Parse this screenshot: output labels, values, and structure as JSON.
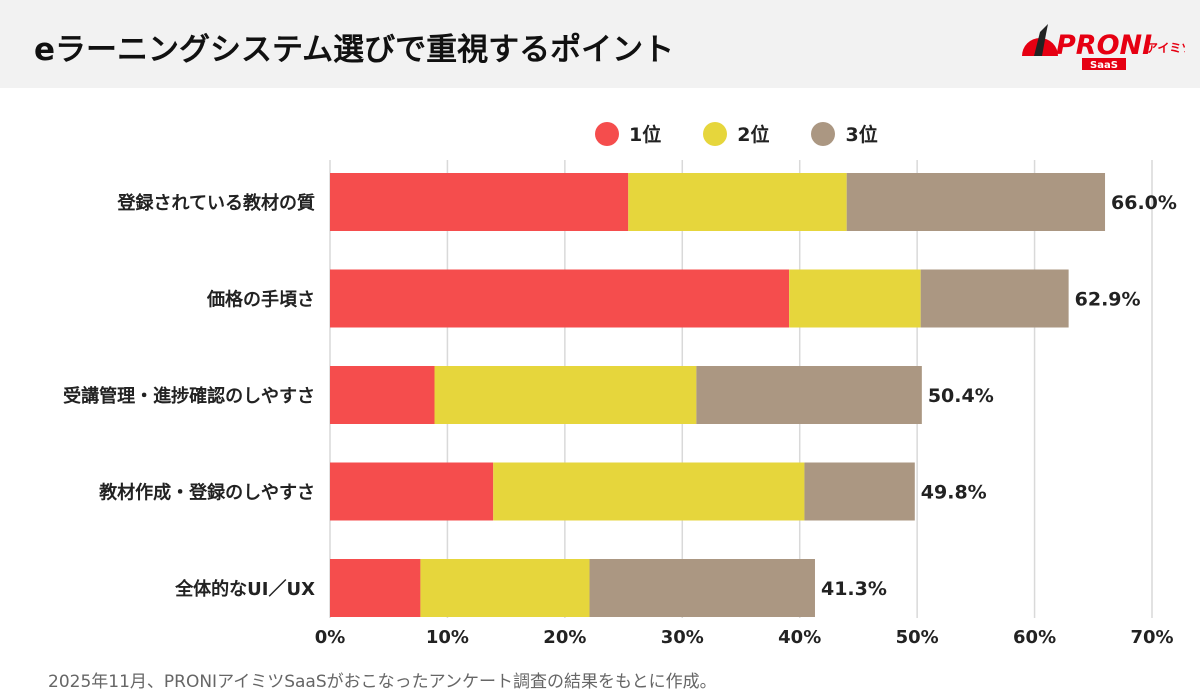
{
  "header": {
    "title": "eラーニングシステム選びで重視するポイント",
    "logo_text": "PRONI アイミツ SaaS"
  },
  "footnote": "2025年11月、PRONIアイミツSaaSがおこなったアンケート調査の結果をもとに作成。",
  "chart_data": {
    "type": "bar",
    "orientation": "horizontal",
    "stacked": true,
    "title": "",
    "categories": [
      "登録されている教材の質",
      "価格の手頃さ",
      "受講管理・進捗確認のしやすさ",
      "教材作成・登録のしやすさ",
      "全体的なUI／UX"
    ],
    "series": [
      {
        "name": "1位",
        "color": "#f54d4d",
        "values": [
          25.4,
          39.1,
          8.9,
          13.9,
          7.7
        ]
      },
      {
        "name": "2位",
        "color": "#e6d63c",
        "values": [
          18.6,
          11.2,
          22.3,
          26.5,
          14.4
        ]
      },
      {
        "name": "3位",
        "color": "#ab9782",
        "values": [
          22.0,
          12.6,
          19.2,
          9.4,
          19.2
        ]
      }
    ],
    "totals": [
      "66.0%",
      "62.9%",
      "50.4%",
      "49.8%",
      "41.3%"
    ],
    "xlim": [
      0,
      70
    ],
    "xticks": [
      "0%",
      "10%",
      "20%",
      "30%",
      "40%",
      "50%",
      "60%",
      "70%"
    ],
    "grid": true,
    "legend": "top"
  }
}
